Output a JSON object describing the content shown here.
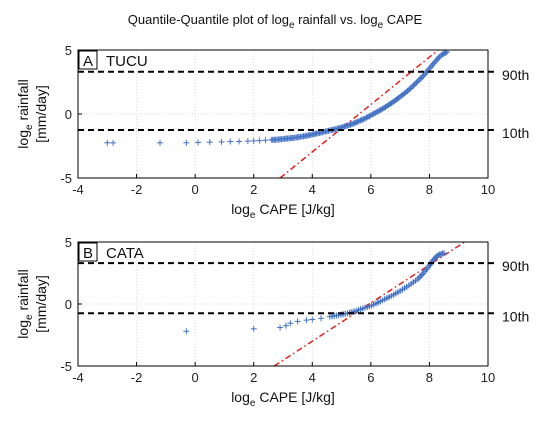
{
  "figure": {
    "title_prefix": "Quantile-Quantile plot of log",
    "title_sub": "e",
    "title_mid": " rainfall vs. log",
    "title_sub2": "e",
    "title_suffix": " CAPE"
  },
  "colors": {
    "points": "#4472c4",
    "reference_line": "#e02020",
    "percentile_line": "#000000",
    "grid": "#d9d9d9"
  },
  "chart_data": [
    {
      "type": "scatter",
      "panel_label": "A",
      "station": "TUCU",
      "xlabel_prefix": "log",
      "xlabel_sub": "e",
      "xlabel_suffix": " CAPE [J/kg]",
      "ylabel_line1_prefix": "log",
      "ylabel_line1_sub": "e",
      "ylabel_line1_suffix": " rainfall",
      "ylabel_line2": "[mm/day]",
      "xlim": [
        -4,
        10
      ],
      "ylim": [
        -5,
        5
      ],
      "xticks": [
        "-4",
        "-2",
        "0",
        "2",
        "4",
        "6",
        "8",
        "10"
      ],
      "yticks": [
        "5",
        "0",
        "-5"
      ],
      "grid": true,
      "percentiles": [
        {
          "label": "90th",
          "y": 3.3
        },
        {
          "label": "10th",
          "y": -1.25
        }
      ],
      "reference_line": {
        "x": [
          2.9,
          8.3
        ],
        "y": [
          -5,
          5
        ]
      },
      "points": [
        [
          -2.8,
          -2.25
        ],
        [
          -3.0,
          -2.25
        ],
        [
          -1.2,
          -2.25
        ],
        [
          -0.3,
          -2.25
        ],
        [
          0.1,
          -2.22
        ],
        [
          0.5,
          -2.2
        ],
        [
          0.9,
          -2.18
        ],
        [
          1.2,
          -2.15
        ],
        [
          1.5,
          -2.15
        ],
        [
          1.8,
          -2.12
        ],
        [
          2.0,
          -2.1
        ],
        [
          2.2,
          -2.08
        ],
        [
          2.4,
          -2.05
        ],
        [
          2.6,
          -2.02
        ],
        [
          2.8,
          -2.0
        ],
        [
          3.0,
          -1.95
        ],
        [
          3.2,
          -1.9
        ],
        [
          3.4,
          -1.85
        ],
        [
          3.6,
          -1.78
        ],
        [
          3.8,
          -1.7
        ],
        [
          4.0,
          -1.6
        ],
        [
          4.2,
          -1.5
        ],
        [
          4.4,
          -1.4
        ],
        [
          4.6,
          -1.28
        ],
        [
          4.8,
          -1.18
        ],
        [
          5.0,
          -1.05
        ],
        [
          5.2,
          -0.9
        ],
        [
          5.4,
          -0.75
        ],
        [
          5.6,
          -0.55
        ],
        [
          5.8,
          -0.35
        ],
        [
          6.0,
          -0.1
        ],
        [
          6.2,
          0.15
        ],
        [
          6.4,
          0.4
        ],
        [
          6.6,
          0.7
        ],
        [
          6.8,
          1.0
        ],
        [
          7.0,
          1.35
        ],
        [
          7.2,
          1.7
        ],
        [
          7.4,
          2.1
        ],
        [
          7.6,
          2.55
        ],
        [
          7.8,
          3.0
        ],
        [
          8.0,
          3.55
        ],
        [
          8.2,
          4.1
        ],
        [
          8.4,
          4.6
        ],
        [
          8.6,
          4.85
        ]
      ]
    },
    {
      "type": "scatter",
      "panel_label": "B",
      "station": "CATA",
      "xlabel_prefix": "log",
      "xlabel_sub": "e",
      "xlabel_suffix": " CAPE [J/kg]",
      "ylabel_line1_prefix": "log",
      "ylabel_line1_sub": "e",
      "ylabel_line1_suffix": " rainfall",
      "ylabel_line2": "[mm/day]",
      "xlim": [
        -4,
        10
      ],
      "ylim": [
        -5,
        5
      ],
      "xticks": [
        "-4",
        "-2",
        "0",
        "2",
        "4",
        "6",
        "8",
        "10"
      ],
      "yticks": [
        "5",
        "0",
        "-5"
      ],
      "grid": true,
      "percentiles": [
        {
          "label": "90th",
          "y": 3.3
        },
        {
          "label": "10th",
          "y": -0.75
        }
      ],
      "reference_line": {
        "x": [
          2.7,
          9.2
        ],
        "y": [
          -5,
          5
        ]
      },
      "points": [
        [
          -0.3,
          -2.2
        ],
        [
          2.0,
          -2.0
        ],
        [
          2.9,
          -1.9
        ],
        [
          3.1,
          -1.75
        ],
        [
          3.25,
          -1.55
        ],
        [
          3.5,
          -1.4
        ],
        [
          3.8,
          -1.3
        ],
        [
          4.0,
          -1.25
        ],
        [
          4.3,
          -1.15
        ],
        [
          4.6,
          -1.02
        ],
        [
          4.9,
          -0.9
        ],
        [
          5.2,
          -0.75
        ],
        [
          5.5,
          -0.55
        ],
        [
          5.8,
          -0.3
        ],
        [
          6.1,
          -0.05
        ],
        [
          6.4,
          0.3
        ],
        [
          6.7,
          0.65
        ],
        [
          7.0,
          1.05
        ],
        [
          7.3,
          1.5
        ],
        [
          7.6,
          2.0
        ],
        [
          7.8,
          2.5
        ],
        [
          8.0,
          3.1
        ],
        [
          8.15,
          3.6
        ],
        [
          8.3,
          3.95
        ],
        [
          8.5,
          4.1
        ]
      ]
    }
  ]
}
